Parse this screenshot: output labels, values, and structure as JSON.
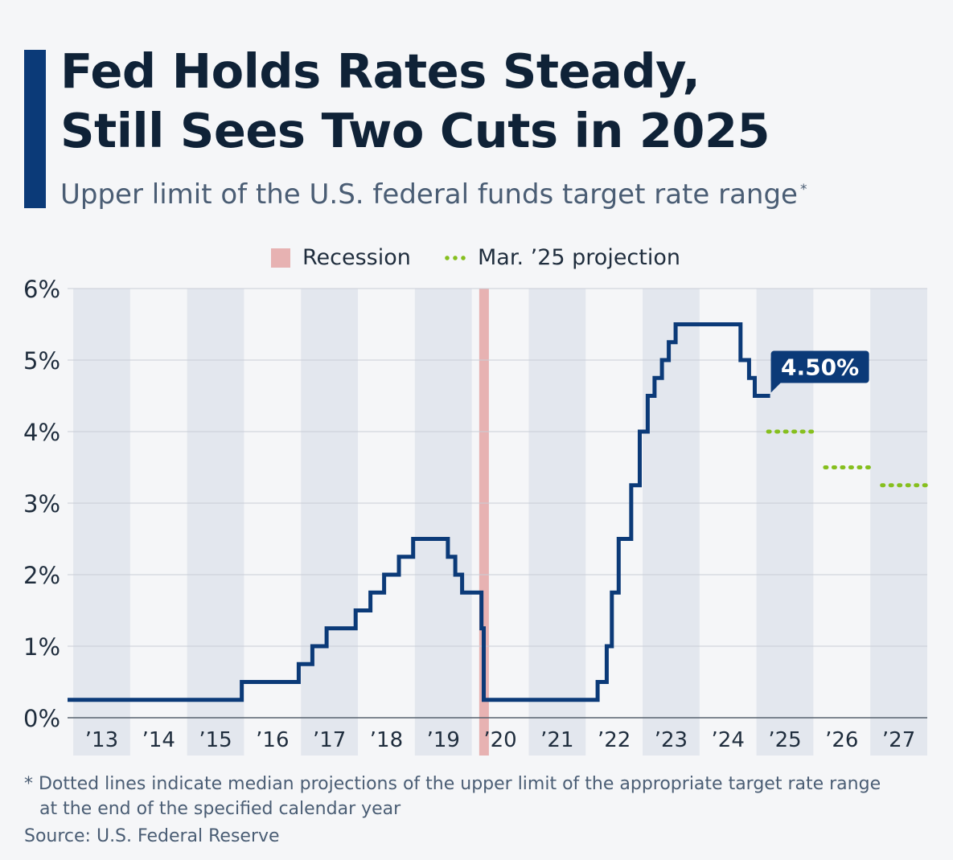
{
  "header": {
    "title_line1": "Fed Holds Rates Steady,",
    "title_line2": "Still Sees Two Cuts in 2025",
    "subtitle": "Upper limit of the U.S. federal funds target rate range",
    "subtitle_mark": "*"
  },
  "legend": {
    "recession_label": "Recession",
    "projection_label": "Mar. ’25 projection"
  },
  "colors": {
    "rate_line": "#0b3a78",
    "projection": "#86bf1e",
    "recession": "#e7b2b2",
    "band": "#e3e7ee",
    "grid": "#c9ced6",
    "accent": "#0b3a78"
  },
  "chart_data": {
    "type": "line",
    "title": "Fed Holds Rates Steady, Still Sees Two Cuts in 2025",
    "subtitle": "Upper limit of the U.S. federal funds target rate range",
    "xlim": [
      2012.9,
      2028.0
    ],
    "ylim": [
      0,
      6
    ],
    "yticks": [
      0,
      1,
      2,
      3,
      4,
      5,
      6
    ],
    "ytick_labels": [
      "0%",
      "1%",
      "2%",
      "3%",
      "4%",
      "5%",
      "6%"
    ],
    "xtick_labels": [
      {
        "year": 2013,
        "label": "’13"
      },
      {
        "year": 2014,
        "label": "’14"
      },
      {
        "year": 2015,
        "label": "’15"
      },
      {
        "year": 2016,
        "label": "’16"
      },
      {
        "year": 2017,
        "label": "’17"
      },
      {
        "year": 2018,
        "label": "’18"
      },
      {
        "year": 2019,
        "label": "’19"
      },
      {
        "year": 2020,
        "label": "’20"
      },
      {
        "year": 2021,
        "label": "’21"
      },
      {
        "year": 2022,
        "label": "’22"
      },
      {
        "year": 2023,
        "label": "’23"
      },
      {
        "year": 2024,
        "label": "’24"
      },
      {
        "year": 2025,
        "label": "’25"
      },
      {
        "year": 2026,
        "label": "’26"
      },
      {
        "year": 2027,
        "label": "’27"
      }
    ],
    "grid": true,
    "legend_position": "top-center",
    "recession": {
      "start": 2020.13,
      "end": 2020.3
    },
    "series": [
      {
        "name": "Federal funds rate (upper limit)",
        "step": true,
        "points": [
          [
            2012.9,
            0.25
          ],
          [
            2015.96,
            0.5
          ],
          [
            2016.96,
            0.75
          ],
          [
            2017.2,
            1.0
          ],
          [
            2017.45,
            1.25
          ],
          [
            2017.96,
            1.5
          ],
          [
            2018.22,
            1.75
          ],
          [
            2018.46,
            2.0
          ],
          [
            2018.72,
            2.25
          ],
          [
            2018.97,
            2.5
          ],
          [
            2019.58,
            2.25
          ],
          [
            2019.71,
            2.0
          ],
          [
            2019.83,
            1.75
          ],
          [
            2020.17,
            1.25
          ],
          [
            2020.21,
            0.25
          ],
          [
            2022.21,
            0.5
          ],
          [
            2022.37,
            1.0
          ],
          [
            2022.46,
            1.75
          ],
          [
            2022.58,
            2.5
          ],
          [
            2022.8,
            3.25
          ],
          [
            2022.95,
            4.0
          ],
          [
            2023.09,
            4.5
          ],
          [
            2023.21,
            4.75
          ],
          [
            2023.34,
            5.0
          ],
          [
            2023.46,
            5.25
          ],
          [
            2023.58,
            5.5
          ],
          [
            2024.72,
            5.0
          ],
          [
            2024.87,
            4.75
          ],
          [
            2024.97,
            4.5
          ],
          [
            2025.24,
            4.5
          ]
        ],
        "last_label": "4.50%"
      },
      {
        "name": "Mar. ’25 projection",
        "dotted": true,
        "segments": [
          {
            "year": 2025,
            "value": 4.0
          },
          {
            "year": 2026,
            "value": 3.5
          },
          {
            "year": 2027,
            "value": 3.25
          }
        ]
      }
    ]
  },
  "footnote": {
    "line1": "* Dotted lines indicate median projections of the upper limit of the appropriate target rate range",
    "line2": "at the end of the specified calendar year"
  },
  "source": "Source: U.S. Federal Reserve"
}
